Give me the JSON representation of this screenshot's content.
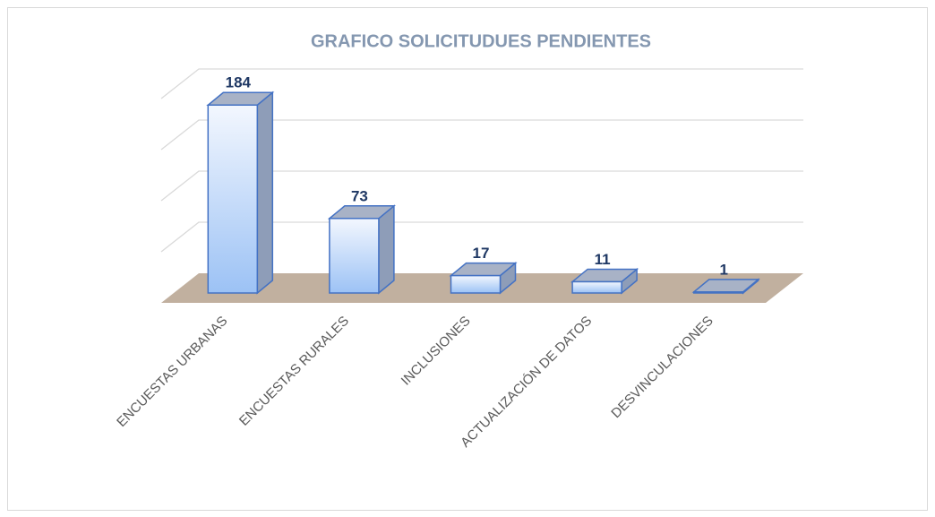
{
  "chart_data": {
    "type": "bar3d",
    "title": "GRAFICO SOLICITUDUES PENDIENTES",
    "categories": [
      "ENCUESTAS URBANAS",
      "ENCUESTAS RURALES",
      "INCLUSIONES",
      "ACTUALIZACIÓN DE DATOS",
      "DESVINCULACIONES"
    ],
    "values": [
      184,
      73,
      17,
      11,
      1
    ],
    "color": "#4472c4",
    "ylim": [
      0,
      200
    ],
    "yticks": [
      0,
      50,
      100,
      150,
      200
    ],
    "grid": true
  }
}
